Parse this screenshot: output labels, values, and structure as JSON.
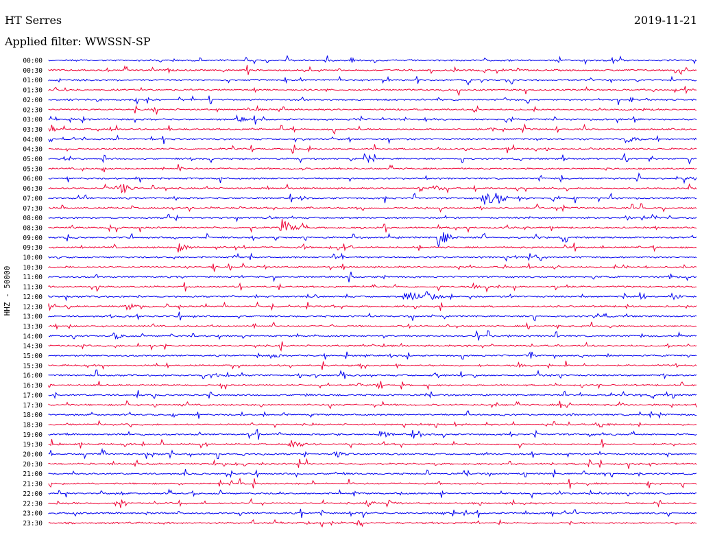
{
  "header": {
    "station": "HT Serres",
    "date": "2019-11-21",
    "filter_label": "Applied filter: WWSSN-SP"
  },
  "chart_data": {
    "type": "line",
    "title": "HT Serres",
    "date": "2019-11-21",
    "subtitle": "Applied filter: WWSSN-SP",
    "ylabel": "HHZ - 50000",
    "xlabel": "",
    "colors": [
      "#0000ee",
      "#ee0033"
    ],
    "row_labels": [
      "00:00",
      "00:30",
      "01:00",
      "01:30",
      "02:00",
      "02:30",
      "03:00",
      "03:30",
      "04:00",
      "04:30",
      "05:00",
      "05:30",
      "06:00",
      "06:30",
      "07:00",
      "07:30",
      "08:00",
      "08:30",
      "09:00",
      "09:30",
      "10:00",
      "10:30",
      "11:00",
      "11:30",
      "12:00",
      "12:30",
      "13:00",
      "13:30",
      "14:00",
      "14:30",
      "15:00",
      "15:30",
      "16:00",
      "16:30",
      "17:00",
      "17:30",
      "18:00",
      "18:30",
      "19:00",
      "19:30",
      "20:00",
      "20:30",
      "21:00",
      "21:30",
      "22:00",
      "22:30",
      "23:00",
      "23:30"
    ],
    "events": [
      {
        "row": "03:00",
        "pos": 0.29,
        "amp": 6
      },
      {
        "row": "04:00",
        "pos": 0.89,
        "amp": 8
      },
      {
        "row": "06:00",
        "pos": 0.98,
        "amp": 8
      },
      {
        "row": "06:30",
        "pos": 0.11,
        "amp": 10
      },
      {
        "row": "06:30",
        "pos": 0.59,
        "amp": 7
      },
      {
        "row": "07:00",
        "pos": 0.67,
        "amp": 14
      },
      {
        "row": "07:00",
        "pos": 0.69,
        "amp": 11
      },
      {
        "row": "08:30",
        "pos": 0.36,
        "amp": 14
      },
      {
        "row": "09:00",
        "pos": 0.6,
        "amp": 15
      },
      {
        "row": "09:30",
        "pos": 0.2,
        "amp": 8
      },
      {
        "row": "11:30",
        "pos": 0.65,
        "amp": 8
      },
      {
        "row": "12:00",
        "pos": 0.55,
        "amp": 14
      },
      {
        "row": "12:00",
        "pos": 0.58,
        "amp": 12
      },
      {
        "row": "12:00",
        "pos": 0.96,
        "amp": 6
      },
      {
        "row": "12:30",
        "pos": 0.12,
        "amp": 7
      },
      {
        "row": "14:00",
        "pos": 0.1,
        "amp": 6
      },
      {
        "row": "15:00",
        "pos": 0.34,
        "amp": 6
      },
      {
        "row": "15:30",
        "pos": 0.72,
        "amp": 7
      },
      {
        "row": "16:00",
        "pos": 0.25,
        "amp": 5
      },
      {
        "row": "18:30",
        "pos": 0.85,
        "amp": 6
      },
      {
        "row": "19:00",
        "pos": 0.51,
        "amp": 7
      },
      {
        "row": "19:30",
        "pos": 0.37,
        "amp": 11
      },
      {
        "row": "20:00",
        "pos": 0.44,
        "amp": 7
      },
      {
        "row": "22:30",
        "pos": 0.49,
        "amp": 6
      },
      {
        "row": "22:30",
        "pos": 0.52,
        "amp": 7
      }
    ]
  }
}
